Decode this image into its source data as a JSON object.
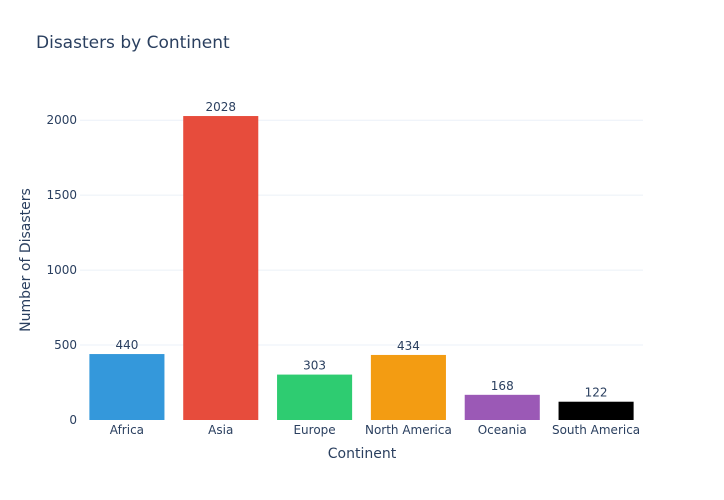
{
  "chart_data": {
    "type": "bar",
    "title": "Disasters by Continent",
    "xlabel": "Continent",
    "ylabel": "Number of Disasters",
    "categories": [
      "Africa",
      "Asia",
      "Europe",
      "North America",
      "Oceania",
      "South America"
    ],
    "values": [
      440,
      2028,
      303,
      434,
      168,
      122
    ],
    "data_labels": [
      "440",
      "2028",
      "303",
      "434",
      "168",
      "122"
    ],
    "colors": [
      "#3498db",
      "#e74c3c",
      "#2ecc71",
      "#f39c12",
      "#9b59b6",
      "#000000"
    ],
    "yticks": [
      0,
      500,
      1000,
      1500,
      2000
    ],
    "ytick_labels": [
      "0",
      "500",
      "1000",
      "1500",
      "2000"
    ],
    "ylim": [
      0,
      2135
    ],
    "grid": true,
    "legend": "none"
  }
}
